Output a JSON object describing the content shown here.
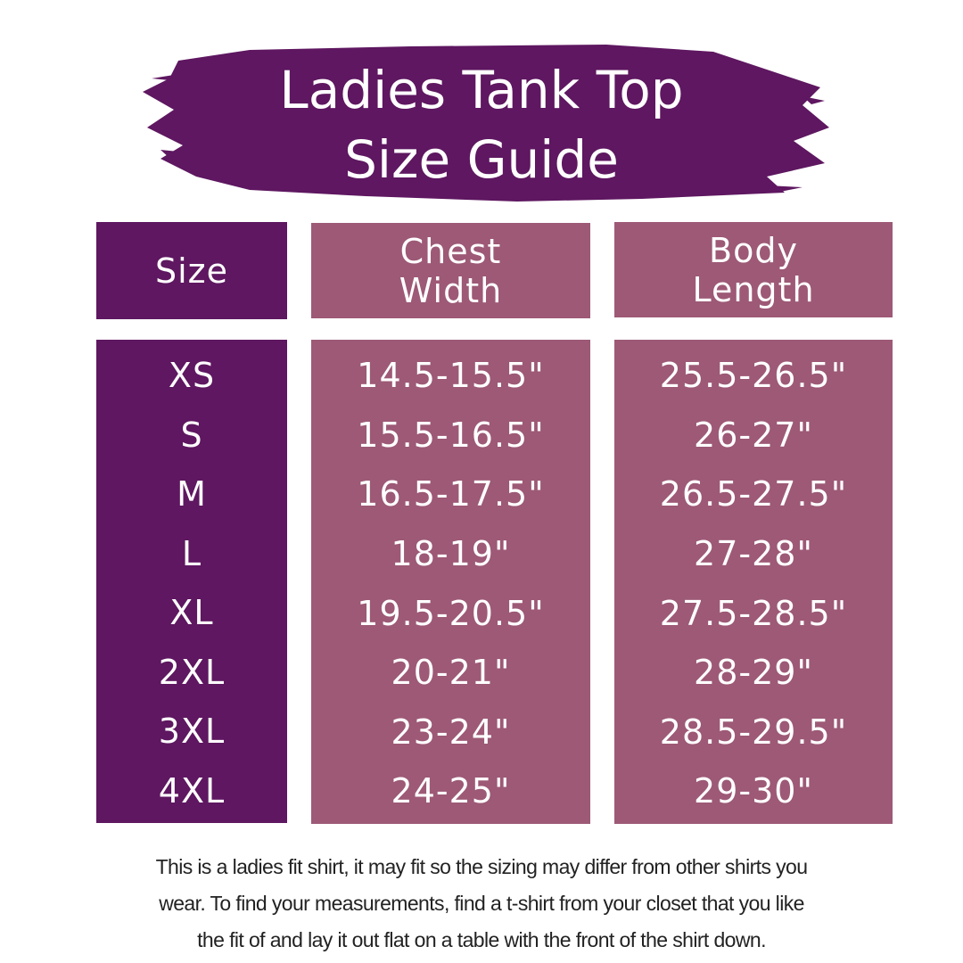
{
  "title": {
    "line1": "Ladies Tank Top",
    "line2": "Size Guide"
  },
  "colors": {
    "dark_purple": "#5e1760",
    "mauve": "#9d5976"
  },
  "table": {
    "headers": {
      "size": "Size",
      "chest_line1": "Chest",
      "chest_line2": "Width",
      "length_line1": "Body",
      "length_line2": "Length"
    },
    "rows": [
      {
        "size": "XS",
        "chest": "14.5-15.5\"",
        "length": "25.5-26.5\""
      },
      {
        "size": "S",
        "chest": "15.5-16.5\"",
        "length": "26-27\""
      },
      {
        "size": "M",
        "chest": "16.5-17.5\"",
        "length": "26.5-27.5\""
      },
      {
        "size": "L",
        "chest": "18-19\"",
        "length": "27-28\""
      },
      {
        "size": "XL",
        "chest": "19.5-20.5\"",
        "length": "27.5-28.5\""
      },
      {
        "size": "2XL",
        "chest": "20-21\"",
        "length": "28-29\""
      },
      {
        "size": "3XL",
        "chest": "23-24\"",
        "length": "28.5-29.5\""
      },
      {
        "size": "4XL",
        "chest": "24-25\"",
        "length": "29-30\""
      }
    ]
  },
  "footer": {
    "line1": "This is a ladies fit shirt, it may fit so the sizing may differ from other shirts you",
    "line2": "wear. To find your measurements, find a t-shirt from your closet that you like",
    "line3": "the fit of and lay it out flat on a table with the front of the shirt down."
  }
}
